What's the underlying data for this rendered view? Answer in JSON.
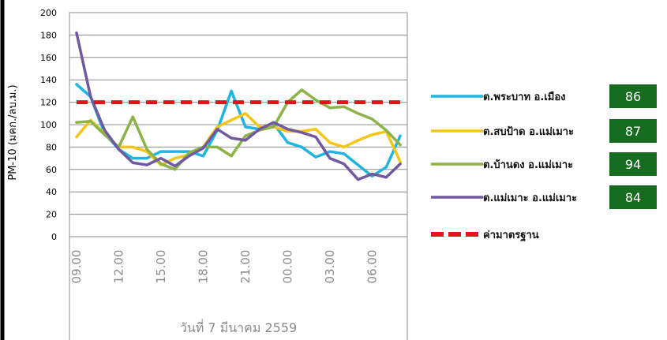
{
  "chart_data": {
    "type": "line",
    "ylabel": "PM-10 (มคก./ลบ.ม.)",
    "xlabel": "วันที่ 7  มีนาคม 2559",
    "ylim": [
      0,
      200
    ],
    "yticks": [
      0,
      20,
      40,
      60,
      80,
      100,
      120,
      140,
      160,
      180,
      200
    ],
    "xtick_labels": [
      "09.00",
      "12.00",
      "15.00",
      "18.00",
      "21.00",
      "00.00",
      "03.00",
      "06.00"
    ],
    "x": [
      "09:00",
      "10:00",
      "11:00",
      "12:00",
      "13:00",
      "14:00",
      "15:00",
      "16:00",
      "17:00",
      "18:00",
      "19:00",
      "20:00",
      "21:00",
      "22:00",
      "23:00",
      "00:00",
      "01:00",
      "02:00",
      "03:00",
      "04:00",
      "05:00",
      "06:00",
      "07:00",
      "08:00"
    ],
    "series": [
      {
        "name": "ต.พระบาท อ.เมือง",
        "color": "#1fb5e3",
        "badge": "86",
        "values": [
          136,
          125,
          92,
          78,
          70,
          70,
          76,
          76,
          76,
          72,
          95,
          130,
          98,
          96,
          101,
          84,
          80,
          71,
          76,
          74,
          64,
          54,
          62,
          90
        ]
      },
      {
        "name": "ต.สบป้าด อ.แม่เมาะ",
        "color": "#f5c518",
        "badge": "87",
        "values": [
          89,
          104,
          92,
          80,
          80,
          76,
          64,
          70,
          73,
          80,
          98,
          104,
          110,
          98,
          98,
          94,
          94,
          96,
          84,
          80,
          86,
          91,
          94,
          67
        ]
      },
      {
        "name": "ต.บ้านดง อ.แม่เมาะ",
        "color": "#8cb347",
        "badge": "94",
        "values": [
          102,
          103,
          91,
          80,
          107,
          78,
          65,
          60,
          75,
          80,
          80,
          72,
          90,
          95,
          98,
          120,
          131,
          122,
          115,
          116,
          110,
          105,
          95,
          82
        ]
      },
      {
        "name": "ต.แม่เมาะ อ.แม่เมาะ",
        "color": "#7059a0",
        "badge": "84",
        "values": [
          182,
          125,
          95,
          78,
          66,
          64,
          70,
          63,
          72,
          79,
          96,
          88,
          86,
          96,
          102,
          96,
          93,
          89,
          70,
          65,
          51,
          56,
          53,
          65
        ]
      },
      {
        "name": "ค่ามาตรฐาน",
        "color": "#e0141a",
        "dashed": true,
        "values": [
          120,
          120,
          120,
          120,
          120,
          120,
          120,
          120,
          120,
          120,
          120,
          120,
          120,
          120,
          120,
          120,
          120,
          120,
          120,
          120,
          120,
          120,
          120,
          120
        ]
      }
    ],
    "grid": true,
    "legend_position": "right"
  }
}
